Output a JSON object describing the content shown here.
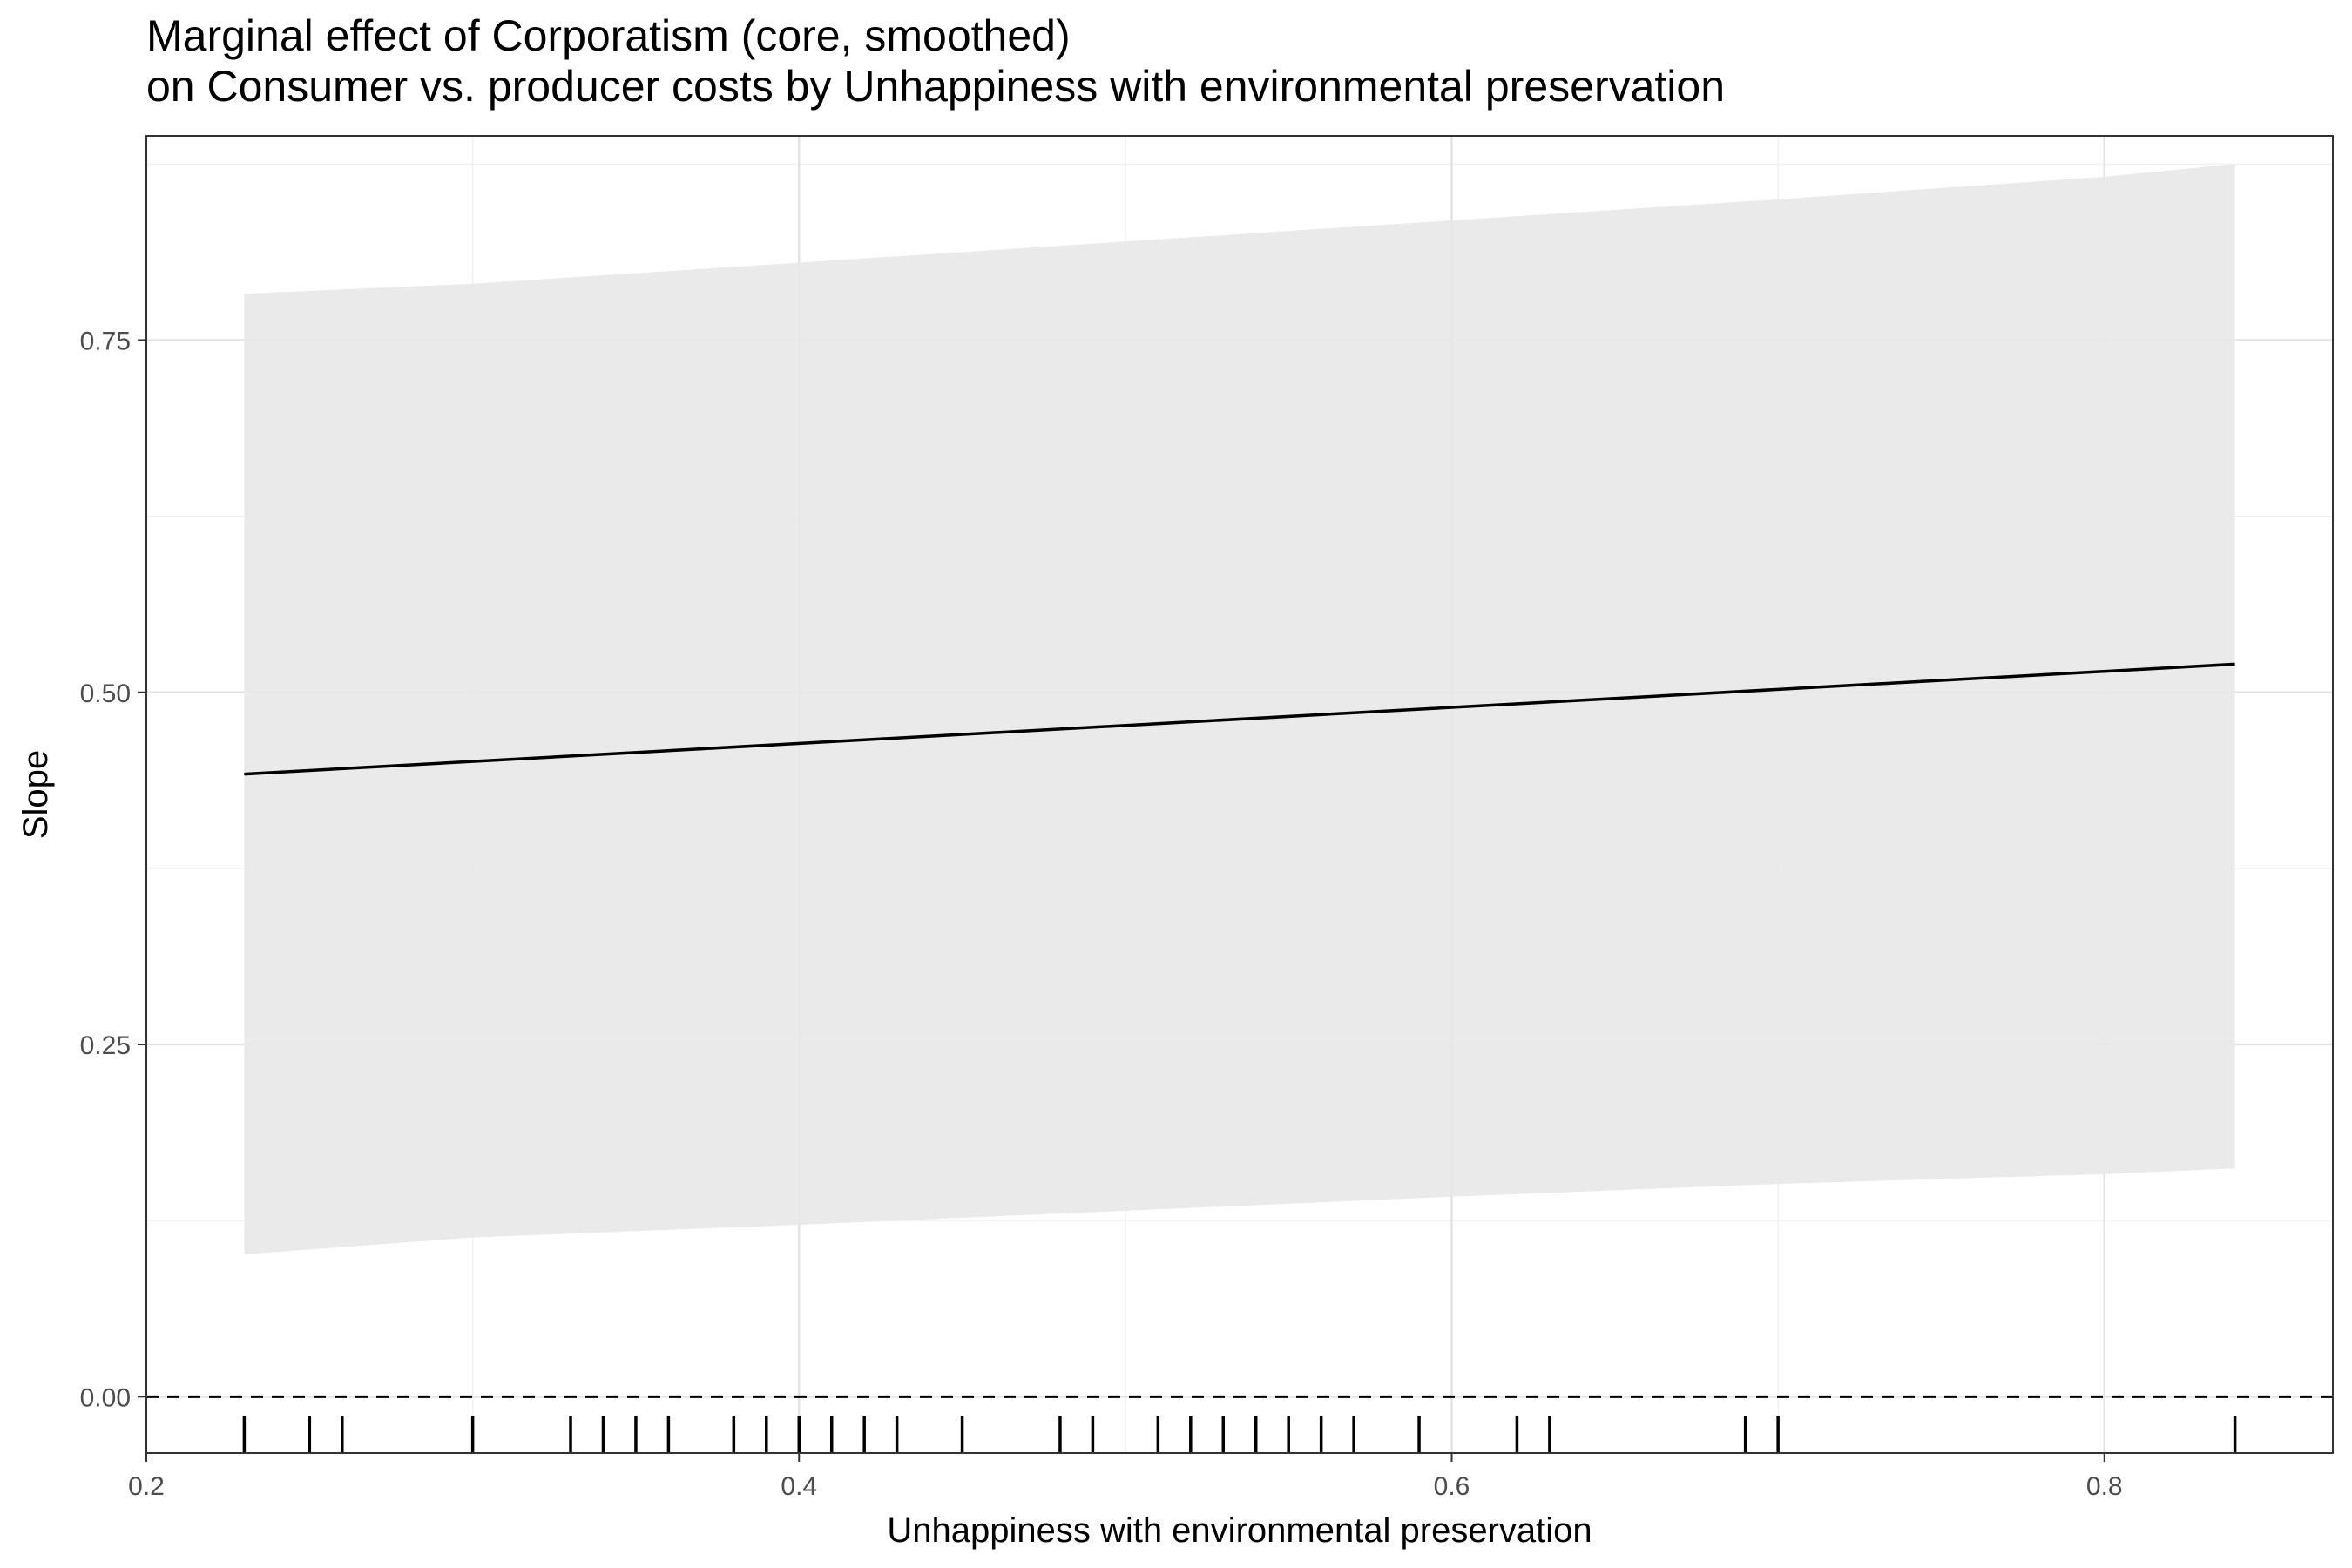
{
  "chart_data": {
    "type": "line",
    "title": "Marginal effect of Corporatism (core, smoothed)",
    "subtitle": "on Consumer vs. producer costs by Unhappiness with environmental preservation",
    "xlabel": "Unhappiness with environmental preservation",
    "ylabel": "Slope",
    "xlim": [
      0.2,
      0.87
    ],
    "ylim": [
      -0.04,
      0.895
    ],
    "x_ticks": [
      0.2,
      0.4,
      0.6,
      0.8
    ],
    "x_tick_labels": [
      "0.2",
      "0.4",
      "0.6",
      "0.8"
    ],
    "y_ticks": [
      0.0,
      0.25,
      0.5,
      0.75
    ],
    "y_tick_labels": [
      "0.00",
      "0.25",
      "0.50",
      "0.75"
    ],
    "grid": true,
    "series": [
      {
        "type": "line",
        "x": [
          0.23,
          0.84
        ],
        "y": [
          0.442,
          0.52
        ],
        "color": "#000000"
      },
      {
        "type": "ribbon",
        "x": [
          0.23,
          0.3,
          0.4,
          0.5,
          0.6,
          0.7,
          0.8,
          0.84
        ],
        "lower": [
          0.101,
          0.113,
          0.122,
          0.132,
          0.142,
          0.151,
          0.158,
          0.162
        ],
        "upper": [
          0.783,
          0.79,
          0.805,
          0.82,
          0.835,
          0.85,
          0.866,
          0.875
        ],
        "color": "#e8e8e8"
      }
    ],
    "reference_line": {
      "y": 0.0,
      "style": "dashed",
      "color": "#000000"
    },
    "rug": [
      0.23,
      0.25,
      0.26,
      0.3,
      0.33,
      0.34,
      0.35,
      0.36,
      0.38,
      0.39,
      0.4,
      0.41,
      0.42,
      0.43,
      0.45,
      0.48,
      0.49,
      0.51,
      0.52,
      0.53,
      0.54,
      0.55,
      0.56,
      0.57,
      0.59,
      0.62,
      0.63,
      0.69,
      0.7,
      0.84
    ]
  }
}
